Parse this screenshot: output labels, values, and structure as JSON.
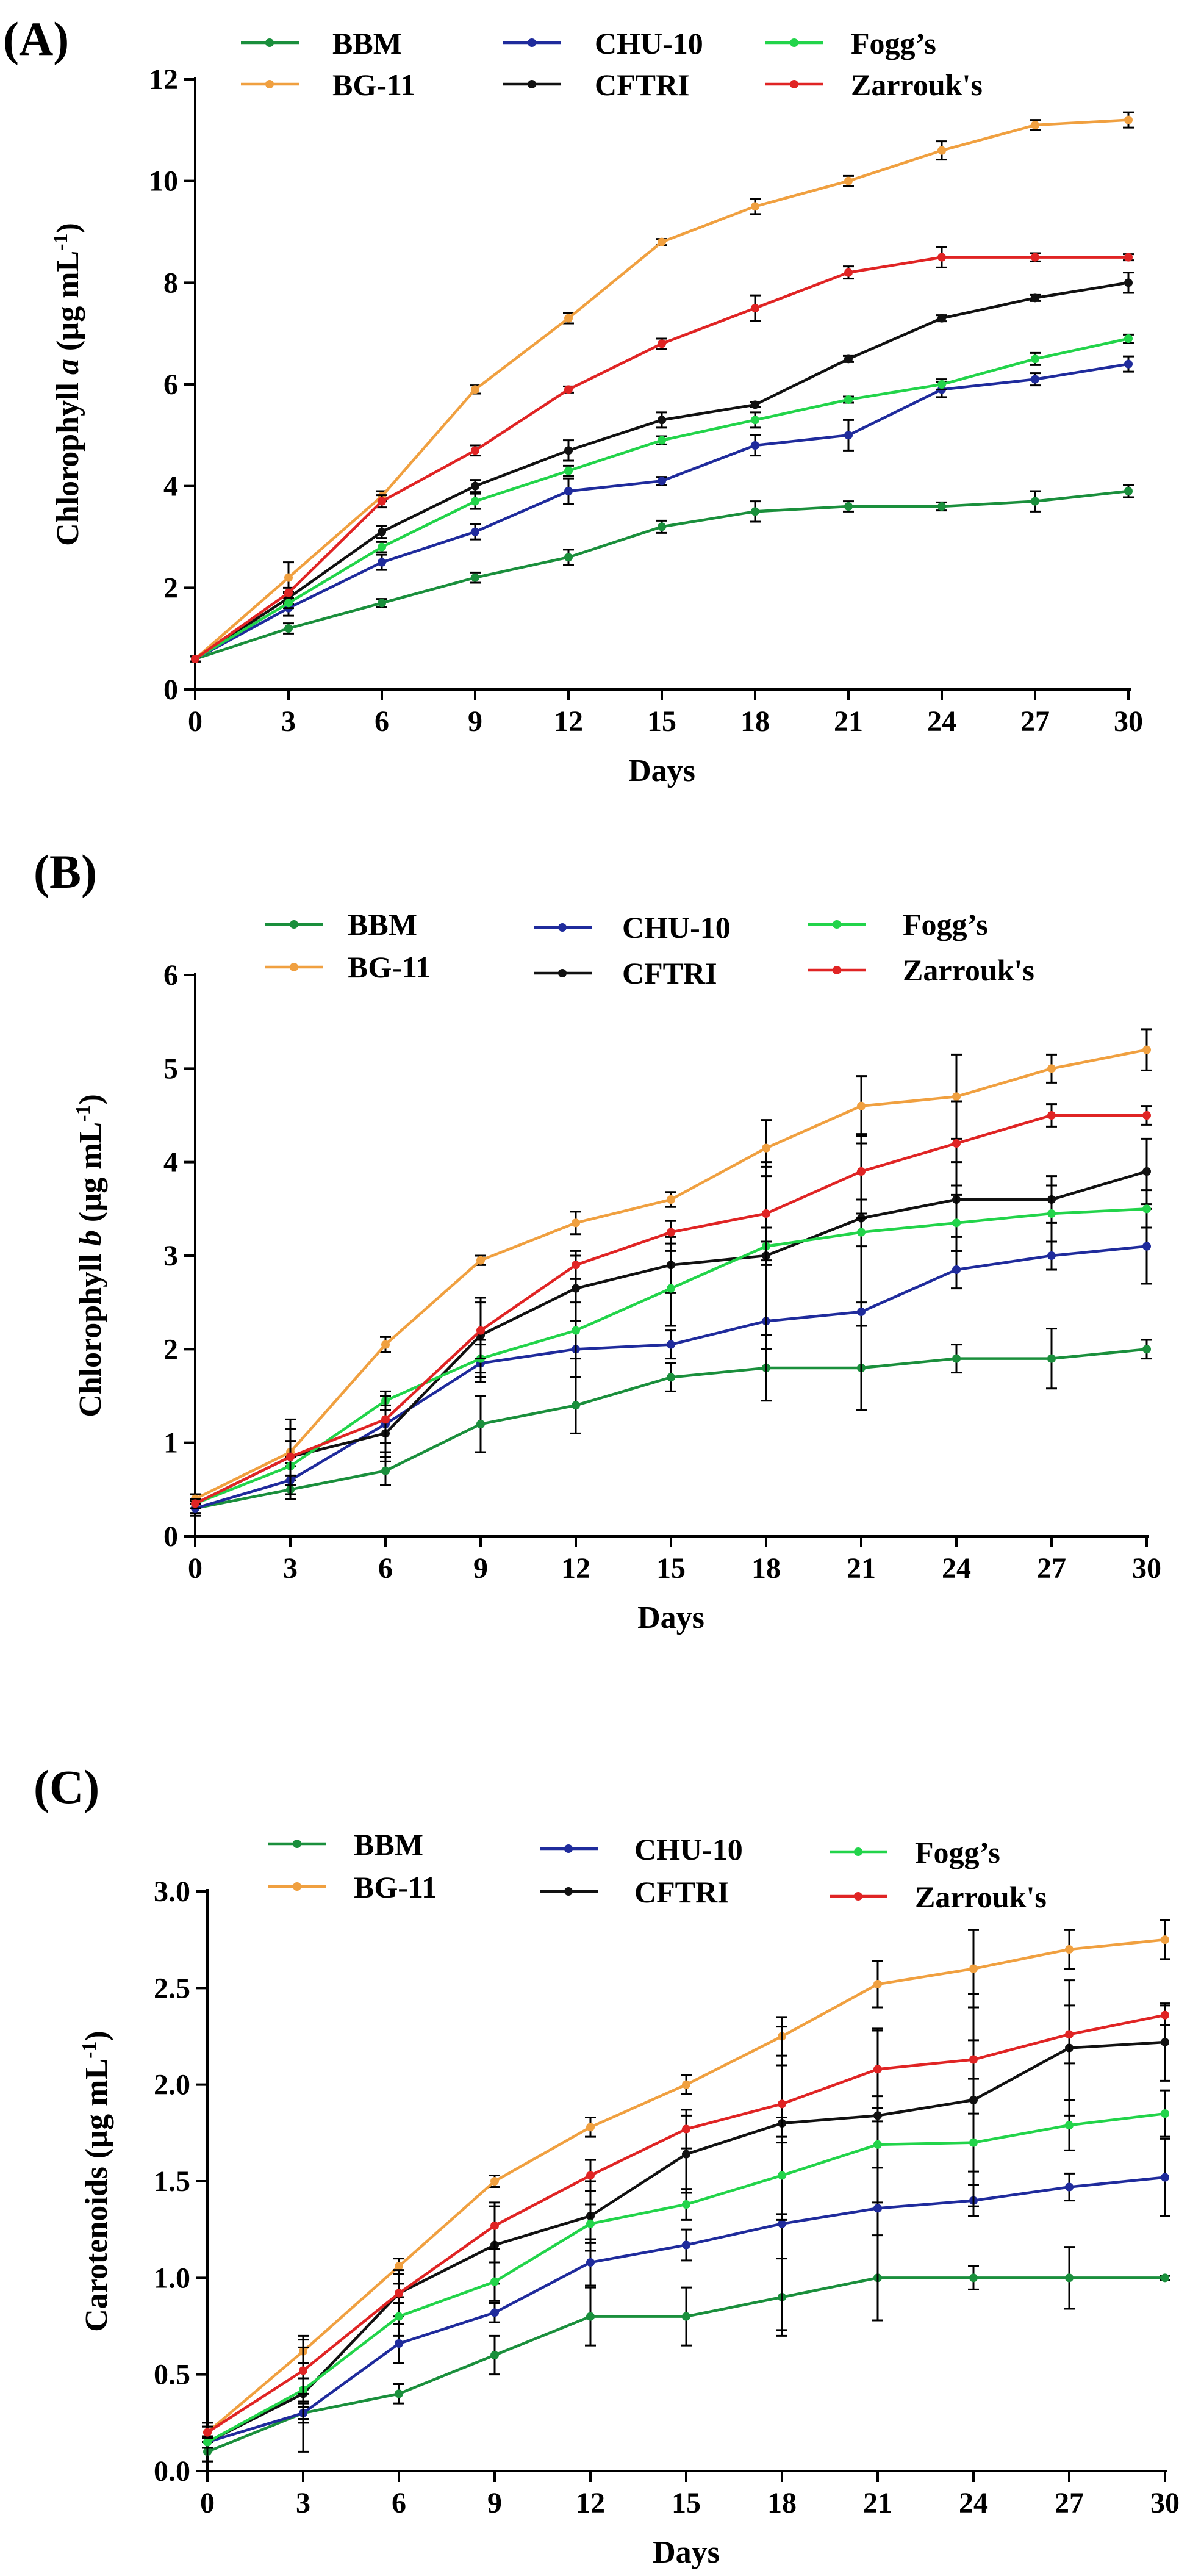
{
  "chart_data": [
    {
      "type": "line",
      "panel_label": "(A)",
      "ylabel_parts": [
        "Chlorophyll ",
        "a",
        " (µg mL",
        "-1",
        ")"
      ],
      "xlabel": "Days",
      "x": [
        0,
        3,
        6,
        9,
        12,
        15,
        18,
        21,
        24,
        27,
        30
      ],
      "x_ticks": [
        "0",
        "3",
        "6",
        "9",
        "12",
        "15",
        "18",
        "21",
        "24",
        "27",
        "30"
      ],
      "ylim": [
        0,
        12
      ],
      "y_ticks": [
        "0",
        "2",
        "4",
        "6",
        "8",
        "10",
        "12"
      ],
      "y_tick_values": [
        0,
        2,
        4,
        6,
        8,
        10,
        12
      ],
      "series": [
        {
          "name": "BBM",
          "color": "#1a8f3c",
          "values": [
            0.6,
            1.2,
            1.7,
            2.2,
            2.6,
            3.2,
            3.5,
            3.6,
            3.6,
            3.7,
            3.9
          ],
          "errors": [
            0.05,
            0.1,
            0.08,
            0.1,
            0.15,
            0.12,
            0.2,
            0.1,
            0.08,
            0.2,
            0.12
          ]
        },
        {
          "name": "BG-11",
          "color": "#f0a040",
          "values": [
            0.6,
            2.2,
            3.8,
            5.9,
            7.3,
            8.8,
            9.5,
            10.0,
            10.6,
            11.1,
            11.2
          ],
          "errors": [
            0.05,
            0.3,
            0.1,
            0.08,
            0.1,
            0.06,
            0.15,
            0.1,
            0.18,
            0.1,
            0.15
          ]
        },
        {
          "name": "CHU-10",
          "color": "#1f2b9c",
          "values": [
            0.6,
            1.6,
            2.5,
            3.1,
            3.9,
            4.1,
            4.8,
            5.0,
            5.9,
            6.1,
            6.4
          ],
          "errors": [
            0.05,
            0.15,
            0.15,
            0.15,
            0.25,
            0.08,
            0.2,
            0.3,
            0.15,
            0.12,
            0.15
          ]
        },
        {
          "name": "CFTRI",
          "color": "#111111",
          "values": [
            0.6,
            1.8,
            3.1,
            4.0,
            4.7,
            5.3,
            5.6,
            6.5,
            7.3,
            7.7,
            8.0
          ],
          "errors": [
            0.05,
            0.12,
            0.12,
            0.12,
            0.2,
            0.15,
            0.05,
            0.06,
            0.06,
            0.06,
            0.2
          ]
        },
        {
          "name": "Fogg’s",
          "color": "#22d44a",
          "values": [
            0.6,
            1.7,
            2.8,
            3.7,
            4.3,
            4.9,
            5.3,
            5.7,
            6.0,
            6.5,
            6.9
          ],
          "errors": [
            0.05,
            0.1,
            0.1,
            0.15,
            0.1,
            0.08,
            0.15,
            0.06,
            0.1,
            0.12,
            0.08
          ]
        },
        {
          "name": "Zarrouk's",
          "color": "#e02424",
          "values": [
            0.6,
            1.9,
            3.7,
            4.7,
            5.9,
            6.8,
            7.5,
            8.2,
            8.5,
            8.5,
            8.5
          ],
          "errors": [
            0.05,
            0.1,
            0.12,
            0.1,
            0.06,
            0.1,
            0.25,
            0.12,
            0.2,
            0.08,
            0.06
          ]
        }
      ]
    },
    {
      "type": "line",
      "panel_label": "(B)",
      "ylabel_parts": [
        "Chlorophyll ",
        "b",
        " (µg mL",
        "-1",
        ")"
      ],
      "xlabel": "Days",
      "x": [
        0,
        3,
        6,
        9,
        12,
        15,
        18,
        21,
        24,
        27,
        30
      ],
      "x_ticks": [
        "0",
        "3",
        "6",
        "9",
        "12",
        "15",
        "18",
        "21",
        "24",
        "27",
        "30"
      ],
      "ylim": [
        0,
        6
      ],
      "y_ticks": [
        "0",
        "1",
        "2",
        "3",
        "4",
        "5",
        "6"
      ],
      "y_tick_values": [
        0,
        1,
        2,
        3,
        4,
        5,
        6
      ],
      "series": [
        {
          "name": "BBM",
          "color": "#1a8f3c",
          "values": [
            0.3,
            0.5,
            0.7,
            1.2,
            1.4,
            1.7,
            1.8,
            1.8,
            1.9,
            1.9,
            2.0
          ],
          "errors": [
            0.08,
            0.1,
            0.15,
            0.3,
            0.3,
            0.15,
            0.35,
            0.45,
            0.15,
            0.32,
            0.1
          ]
        },
        {
          "name": "BG-11",
          "color": "#f0a040",
          "values": [
            0.4,
            0.9,
            2.05,
            2.95,
            3.35,
            3.6,
            4.15,
            4.6,
            4.7,
            5.0,
            5.2
          ],
          "errors": [
            0.05,
            0.12,
            0.08,
            0.05,
            0.12,
            0.08,
            0.3,
            0.32,
            0.45,
            0.15,
            0.22
          ]
        },
        {
          "name": "CHU-10",
          "color": "#1f2b9c",
          "values": [
            0.3,
            0.6,
            1.2,
            1.85,
            2.0,
            2.05,
            2.3,
            2.4,
            2.85,
            3.0,
            3.1
          ],
          "errors": [
            0.05,
            0.15,
            0.3,
            0.2,
            0.3,
            0.15,
            0.85,
            1.05,
            0.2,
            0.15,
            0.4
          ]
        },
        {
          "name": "CFTRI",
          "color": "#111111",
          "values": [
            0.35,
            0.85,
            1.1,
            2.15,
            2.65,
            2.9,
            3.0,
            3.4,
            3.6,
            3.6,
            3.9
          ],
          "errors": [
            0.05,
            0.4,
            0.3,
            0.4,
            0.35,
            0.3,
            1.0,
            0.9,
            0.4,
            0.25,
            0.35
          ]
        },
        {
          "name": "Fogg’s",
          "color": "#22d44a",
          "values": [
            0.35,
            0.75,
            1.45,
            1.9,
            2.2,
            2.65,
            3.1,
            3.25,
            3.35,
            3.45,
            3.5
          ],
          "errors": [
            0.05,
            0.1,
            0.1,
            0.2,
            0.3,
            0.4,
            0.2,
            0.15,
            0.3,
            0.3,
            0.2
          ]
        },
        {
          "name": "Zarrouk's",
          "color": "#e02424",
          "values": [
            0.35,
            0.85,
            1.25,
            2.2,
            2.9,
            3.25,
            3.45,
            3.9,
            4.2,
            4.5,
            4.5
          ],
          "errors": [
            0.05,
            0.3,
            0.25,
            0.3,
            0.15,
            0.12,
            0.5,
            0.3,
            0.45,
            0.12,
            0.1
          ]
        }
      ]
    },
    {
      "type": "line",
      "panel_label": "(C)",
      "ylabel_parts": [
        "Carotenoids (µg mL",
        "-1",
        ")"
      ],
      "xlabel": "Days",
      "x": [
        0,
        3,
        6,
        9,
        12,
        15,
        18,
        21,
        24,
        27,
        30
      ],
      "x_ticks": [
        "0",
        "3",
        "6",
        "9",
        "12",
        "15",
        "18",
        "21",
        "24",
        "27",
        "30"
      ],
      "ylim": [
        0,
        3
      ],
      "y_ticks": [
        "0.0",
        "0.5",
        "1.0",
        "1.5",
        "2.0",
        "2.5",
        "3.0"
      ],
      "y_tick_values": [
        0,
        0.5,
        1.0,
        1.5,
        2.0,
        2.5,
        3.0
      ],
      "series": [
        {
          "name": "BBM",
          "color": "#1a8f3c",
          "values": [
            0.1,
            0.3,
            0.4,
            0.6,
            0.8,
            0.8,
            0.9,
            1.0,
            1.0,
            1.0,
            1.0
          ],
          "errors": [
            0.05,
            0.03,
            0.05,
            0.1,
            0.15,
            0.15,
            0.2,
            0.22,
            0.06,
            0.16,
            0.01
          ]
        },
        {
          "name": "BG-11",
          "color": "#f0a040",
          "values": [
            0.2,
            0.62,
            1.06,
            1.5,
            1.78,
            2.0,
            2.25,
            2.52,
            2.6,
            2.7,
            2.75
          ],
          "errors": [
            0.03,
            0.06,
            0.04,
            0.03,
            0.05,
            0.05,
            0.1,
            0.12,
            0.2,
            0.1,
            0.1
          ]
        },
        {
          "name": "CHU-10",
          "color": "#1f2b9c",
          "values": [
            0.15,
            0.3,
            0.66,
            0.82,
            1.08,
            1.17,
            1.28,
            1.36,
            1.4,
            1.47,
            1.52
          ],
          "errors": [
            0.03,
            0.05,
            0.1,
            0.05,
            0.12,
            0.08,
            0.55,
            0.58,
            0.08,
            0.07,
            0.2
          ]
        },
        {
          "name": "CFTRI",
          "color": "#111111",
          "values": [
            0.15,
            0.4,
            0.92,
            1.17,
            1.32,
            1.64,
            1.8,
            1.84,
            1.92,
            2.19,
            2.22
          ],
          "errors": [
            0.1,
            0.3,
            0.12,
            0.2,
            0.18,
            0.2,
            0.5,
            0.45,
            0.55,
            0.35,
            0.2
          ]
        },
        {
          "name": "Fogg’s",
          "color": "#22d44a",
          "values": [
            0.15,
            0.42,
            0.8,
            0.98,
            1.28,
            1.38,
            1.53,
            1.69,
            1.7,
            1.79,
            1.85
          ],
          "errors": [
            0.03,
            0.06,
            0.1,
            0.1,
            0.1,
            0.08,
            0.2,
            0.12,
            0.15,
            0.13,
            0.12
          ]
        },
        {
          "name": "Zarrouk's",
          "color": "#e02424",
          "values": [
            0.2,
            0.52,
            0.92,
            1.27,
            1.53,
            1.77,
            1.9,
            2.08,
            2.13,
            2.26,
            2.36
          ],
          "errors": [
            0.03,
            0.12,
            0.05,
            0.12,
            0.08,
            0.1,
            0.2,
            0.2,
            0.1,
            0.15,
            0.05
          ]
        }
      ]
    }
  ]
}
